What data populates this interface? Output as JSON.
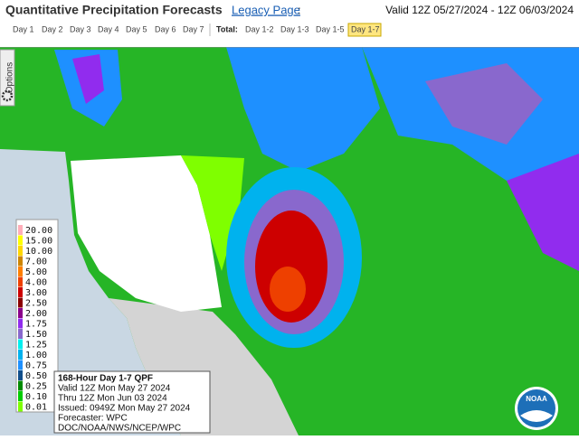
{
  "header": {
    "title": "Quantitative Precipitation Forecasts",
    "link": "Legacy Page",
    "colon": ":",
    "valid": "Valid 12Z 05/27/2024 - 12Z 06/03/2024"
  },
  "tabs": {
    "days": [
      "Day 1",
      "Day 2",
      "Day 3",
      "Day 4",
      "Day 5",
      "Day 6",
      "Day 7"
    ],
    "total_label": "Total:",
    "totals": [
      "Day 1-2",
      "Day 1-3",
      "Day 1-5",
      "Day 1-7"
    ],
    "selected": 3
  },
  "options_tab": "Options",
  "legend": [
    {
      "label": "20.00",
      "color": "#ffaeb9"
    },
    {
      "label": "15.00",
      "color": "#ffff00"
    },
    {
      "label": "10.00",
      "color": "#ffd700"
    },
    {
      "label": "7.00",
      "color": "#cd8500"
    },
    {
      "label": "5.00",
      "color": "#ff7f00"
    },
    {
      "label": "4.00",
      "color": "#ee4000"
    },
    {
      "label": "3.00",
      "color": "#cd0000"
    },
    {
      "label": "2.50",
      "color": "#8b0000"
    },
    {
      "label": "2.00",
      "color": "#8b008b"
    },
    {
      "label": "1.75",
      "color": "#912cee"
    },
    {
      "label": "1.50",
      "color": "#8968cd"
    },
    {
      "label": "1.25",
      "color": "#00eeee"
    },
    {
      "label": "1.00",
      "color": "#00b2ee"
    },
    {
      "label": "0.75",
      "color": "#1e90ff"
    },
    {
      "label": "0.50",
      "color": "#104e8b"
    },
    {
      "label": "0.25",
      "color": "#008b00"
    },
    {
      "label": "0.10",
      "color": "#00cd00"
    },
    {
      "label": "0.01",
      "color": "#7fff00"
    }
  ],
  "info_box": {
    "lines": [
      "168-Hour Day 1-7 QPF",
      "Valid 12Z Mon May 27 2024",
      "Thru 12Z Mon Jun 03 2024",
      "Issued: 0949Z Mon May 27 2024",
      "Forecaster: WPC",
      "DOC/NOAA/NWS/NCEP/WPC"
    ]
  },
  "logo": "NOAA"
}
